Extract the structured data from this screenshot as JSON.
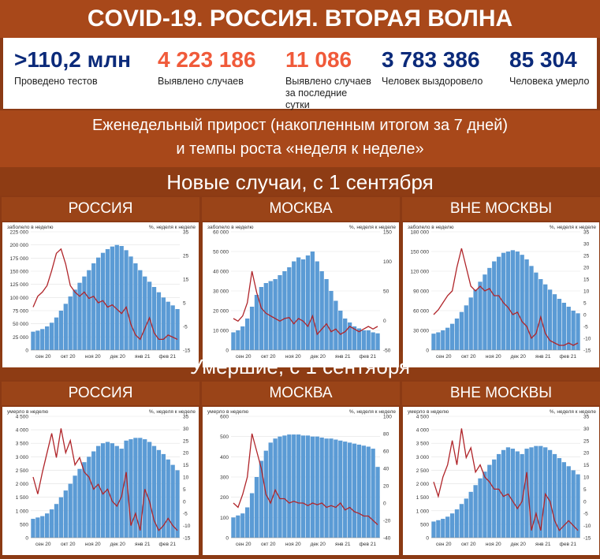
{
  "title": "COVID-19. РОССИЯ. ВТОРАЯ ВОЛНА",
  "stats": [
    {
      "value": ">110,2 млн",
      "label": "Проведено тестов",
      "color": "#0b2a7a"
    },
    {
      "value": "4 223 186",
      "label": "Выявлено случаев",
      "color": "#f05a3a"
    },
    {
      "value": "11 086",
      "label": "Выявлено случаев за последние сутки",
      "color": "#f05a3a"
    },
    {
      "value": "3 783 386",
      "label": "Человек выздоровело",
      "color": "#0b2a7a"
    },
    {
      "value": "85 304",
      "label": "Человека умерло",
      "color": "#0b2a7a"
    }
  ],
  "subtitle_line1": "Еженедельный прирост (накопленным итогом за 7 дней)",
  "subtitle_line2": "и темпы роста «неделя к неделе»",
  "section_cases": "Новые случаи, с 1 сентября",
  "section_deaths": "Умершие, с 1 сентября",
  "colors": {
    "bars": "#5b9bd5",
    "line": "#b0252a",
    "band": "#a8481a"
  },
  "months": [
    "сен 20",
    "окт 20",
    "ноя 20",
    "дек 20",
    "янв 21",
    "фев 21"
  ],
  "chart_data": [
    {
      "type": "bar",
      "panel": "РОССИЯ",
      "left_label": "заболело в неделю",
      "right_label": "%, неделя к неделе",
      "ylim": [
        0,
        225000
      ],
      "yticks": [
        "0",
        "25 000",
        "50 000",
        "75 000",
        "100 000",
        "125 000",
        "150 000",
        "175 000",
        "200 000",
        "225 000"
      ],
      "y2lim": [
        -15,
        40
      ],
      "y2ticks": [
        "-15",
        "-5",
        "5",
        "15",
        "25",
        "35"
      ],
      "bars": [
        35000,
        37000,
        40000,
        45000,
        52000,
        62000,
        75000,
        88000,
        102000,
        115000,
        128000,
        140000,
        152000,
        165000,
        176000,
        185000,
        192000,
        197000,
        200000,
        198000,
        190000,
        178000,
        165000,
        152000,
        140000,
        130000,
        120000,
        110000,
        100000,
        92000,
        85000,
        78000
      ],
      "line": [
        5,
        10,
        12,
        15,
        22,
        30,
        32,
        25,
        15,
        12,
        10,
        12,
        9,
        10,
        7,
        8,
        5,
        6,
        4,
        2,
        5,
        -3,
        -8,
        -10,
        -5,
        0,
        -7,
        -10,
        -10,
        -8,
        -9,
        -10
      ]
    },
    {
      "type": "bar",
      "panel": "МОСКВА",
      "left_label": "заболело в неделю",
      "right_label": "%, неделя к неделе",
      "ylim": [
        0,
        60000
      ],
      "yticks": [
        "0",
        "10 000",
        "20 000",
        "30 000",
        "40 000",
        "50 000",
        "60 000"
      ],
      "y2lim": [
        -50,
        175
      ],
      "y2ticks": [
        "-50",
        "0",
        "50",
        "100",
        "150"
      ],
      "bars": [
        9000,
        10000,
        12000,
        16000,
        22000,
        28000,
        32000,
        34000,
        35000,
        36000,
        38000,
        40000,
        42000,
        45000,
        47000,
        46000,
        48000,
        50000,
        45000,
        40000,
        36000,
        30000,
        25000,
        20000,
        16000,
        14000,
        12000,
        11000,
        10000,
        10000,
        9000,
        8500
      ],
      "line": [
        10,
        5,
        15,
        40,
        100,
        60,
        30,
        20,
        15,
        10,
        5,
        10,
        12,
        0,
        10,
        5,
        -5,
        15,
        -20,
        -10,
        0,
        -15,
        -10,
        -20,
        -15,
        -5,
        -10,
        -15,
        -10,
        -5,
        -10,
        -5
      ]
    },
    {
      "type": "bar",
      "panel": "ВНЕ МОСКВЫ",
      "left_label": "заболело в неделю",
      "right_label": "%, неделя к неделе",
      "ylim": [
        0,
        180000
      ],
      "yticks": [
        "0",
        "30 000",
        "60 000",
        "90 000",
        "120 000",
        "150 000",
        "180 000"
      ],
      "y2lim": [
        -15,
        35
      ],
      "y2ticks": [
        "-15",
        "-10",
        "-5",
        "0",
        "5",
        "10",
        "15",
        "20",
        "25",
        "30",
        "35"
      ],
      "bars": [
        25000,
        27000,
        30000,
        34000,
        40000,
        48000,
        58000,
        68000,
        80000,
        92000,
        104000,
        115000,
        125000,
        135000,
        142000,
        148000,
        150000,
        152000,
        150000,
        145000,
        138000,
        128000,
        118000,
        108000,
        100000,
        92000,
        85000,
        78000,
        72000,
        66000,
        60000,
        56000
      ],
      "line": [
        0,
        2,
        5,
        8,
        10,
        20,
        28,
        20,
        12,
        10,
        12,
        10,
        11,
        8,
        8,
        5,
        3,
        0,
        1,
        -3,
        -5,
        -10,
        -8,
        -1,
        -8,
        -11,
        -12,
        -13,
        -13,
        -12,
        -13,
        -12
      ]
    },
    {
      "type": "bar",
      "panel": "РОССИЯ",
      "left_label": "умерло в неделю",
      "right_label": "%, неделя к неделе",
      "ylim": [
        0,
        4500
      ],
      "yticks": [
        "0",
        "500",
        "1 000",
        "1 500",
        "2 000",
        "2 500",
        "3 000",
        "3 500",
        "4 000",
        "4 500"
      ],
      "y2lim": [
        -15,
        35
      ],
      "y2ticks": [
        "-15",
        "-10",
        "-5",
        "0",
        "5",
        "10",
        "15",
        "20",
        "25",
        "30",
        "35"
      ],
      "bars": [
        700,
        750,
        800,
        900,
        1050,
        1250,
        1500,
        1750,
        2000,
        2300,
        2550,
        2800,
        3000,
        3200,
        3400,
        3500,
        3550,
        3500,
        3400,
        3300,
        3600,
        3650,
        3700,
        3700,
        3650,
        3550,
        3400,
        3250,
        3100,
        2900,
        2700,
        2500
      ],
      "line": [
        10,
        3,
        12,
        20,
        28,
        18,
        30,
        20,
        25,
        15,
        18,
        12,
        10,
        5,
        7,
        3,
        5,
        0,
        -2,
        2,
        12,
        -10,
        -5,
        -12,
        5,
        0,
        -8,
        -12,
        -10,
        -7,
        -10,
        -12
      ]
    },
    {
      "type": "bar",
      "panel": "МОСКВА",
      "left_label": "умерло в неделю",
      "right_label": "%, неделя к неделе",
      "ylim": [
        0,
        600
      ],
      "yticks": [
        "0",
        "100",
        "200",
        "300",
        "400",
        "500",
        "600"
      ],
      "y2lim": [
        -40,
        100
      ],
      "y2ticks": [
        "-40",
        "-20",
        "0",
        "20",
        "40",
        "60",
        "80",
        "100"
      ],
      "bars": [
        100,
        110,
        120,
        150,
        220,
        300,
        380,
        430,
        470,
        490,
        500,
        505,
        510,
        510,
        510,
        505,
        505,
        500,
        500,
        495,
        490,
        490,
        485,
        480,
        475,
        470,
        465,
        460,
        455,
        450,
        440,
        350
      ],
      "line": [
        0,
        -5,
        10,
        30,
        80,
        60,
        40,
        10,
        0,
        15,
        5,
        5,
        0,
        2,
        0,
        0,
        -3,
        0,
        -2,
        0,
        -5,
        -3,
        -5,
        0,
        -8,
        -5,
        -10,
        -12,
        -15,
        -15,
        -20,
        -25
      ]
    },
    {
      "type": "bar",
      "panel": "ВНЕ МОСКВЫ",
      "left_label": "умерло в неделю",
      "right_label": "%, неделя к неделе",
      "ylim": [
        0,
        4500
      ],
      "yticks": [
        "0",
        "500",
        "1 000",
        "1 500",
        "2 000",
        "2 500",
        "3 000",
        "3 500",
        "4 000",
        "4 500"
      ],
      "y2lim": [
        -15,
        35
      ],
      "y2ticks": [
        "-15",
        "-10",
        "-5",
        "0",
        "5",
        "10",
        "15",
        "20",
        "25",
        "30",
        "35"
      ],
      "bars": [
        600,
        650,
        700,
        780,
        900,
        1050,
        1250,
        1450,
        1700,
        1950,
        2200,
        2450,
        2700,
        2900,
        3100,
        3250,
        3350,
        3300,
        3200,
        3100,
        3300,
        3350,
        3400,
        3400,
        3350,
        3250,
        3100,
        2950,
        2800,
        2650,
        2500,
        2350
      ],
      "line": [
        8,
        2,
        10,
        15,
        25,
        15,
        30,
        18,
        22,
        12,
        15,
        10,
        8,
        5,
        5,
        2,
        3,
        0,
        -3,
        0,
        12,
        -12,
        -5,
        -12,
        3,
        0,
        -8,
        -12,
        -10,
        -8,
        -10,
        -12
      ]
    }
  ]
}
